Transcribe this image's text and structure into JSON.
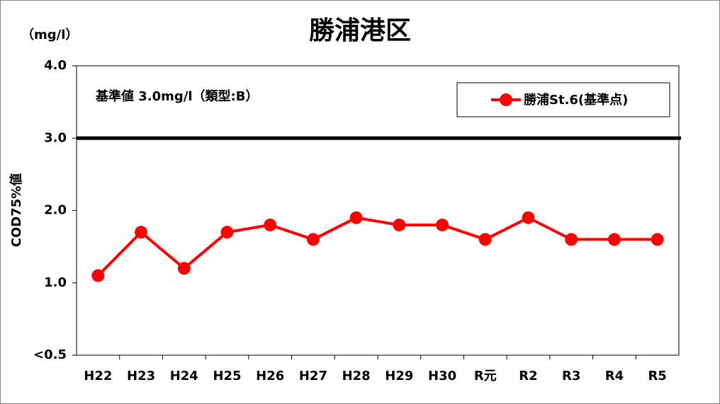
{
  "chart_data": {
    "type": "line",
    "title": "勝浦港区",
    "unit_label": "（mg/l）",
    "y_label": "COD75%値",
    "annotation": "基準値  3.0mg/l（類型:B）",
    "reference_line": 3,
    "categories": [
      "H22",
      "H23",
      "H24",
      "H25",
      "H26",
      "H27",
      "H28",
      "H29",
      "H30",
      "R元",
      "R2",
      "R3",
      "R4",
      "R5"
    ],
    "series": [
      {
        "name": "勝浦St.6(基準点)",
        "color": "#ff0000",
        "values": [
          1.1,
          1.7,
          1.2,
          1.7,
          1.8,
          1.6,
          1.9,
          1.8,
          1.8,
          1.6,
          1.9,
          1.6,
          1.6,
          1.6
        ]
      }
    ],
    "ylim": [
      0,
      4
    ],
    "yticks": [
      {
        "value": 0,
        "label": "<0.5"
      },
      {
        "value": 1,
        "label": "1.0"
      },
      {
        "value": 2,
        "label": "2.0"
      },
      {
        "value": 3,
        "label": "3.0"
      },
      {
        "value": 4,
        "label": "4.0"
      }
    ],
    "grid": false
  }
}
